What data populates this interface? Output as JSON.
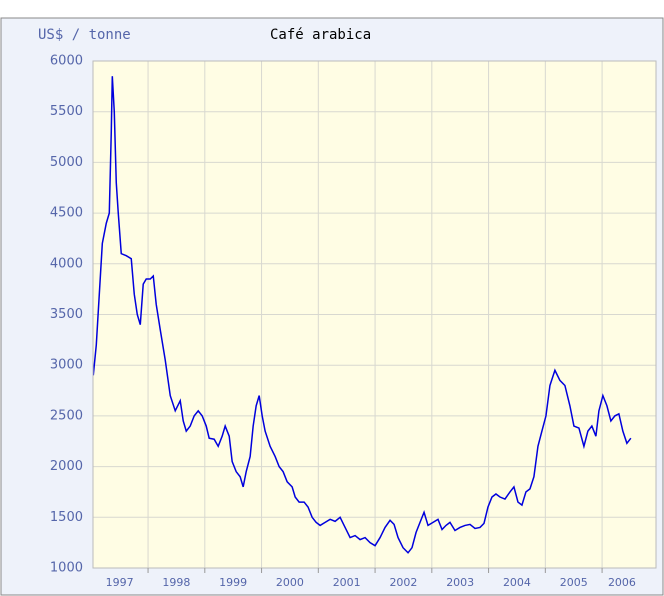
{
  "chart_data": {
    "type": "line",
    "title": "Café arabica",
    "y_label": "US$ / tonne",
    "xlim": [
      1997.03,
      2006.95
    ],
    "xticks": [
      {
        "value": 1997.5,
        "label": "1997"
      },
      {
        "value": 1998.5,
        "label": "1998"
      },
      {
        "value": 1999.5,
        "label": "1999"
      },
      {
        "value": 2000.5,
        "label": "2000"
      },
      {
        "value": 2001.5,
        "label": "2001"
      },
      {
        "value": 2002.5,
        "label": "2002"
      },
      {
        "value": 2003.5,
        "label": "2003"
      },
      {
        "value": 2004.5,
        "label": "2004"
      },
      {
        "value": 2005.5,
        "label": "2005"
      },
      {
        "value": 2006.35,
        "label": "2006"
      }
    ],
    "xgrid": [
      1998,
      1999,
      2000,
      2001,
      2002,
      2003,
      2004,
      2005,
      2006
    ],
    "ylim": [
      1000,
      6000
    ],
    "yticks": [
      1000,
      1500,
      2000,
      2500,
      3000,
      3500,
      4000,
      4500,
      5000,
      5500,
      6000
    ],
    "grid": true,
    "series": [
      {
        "name": "Café arabica",
        "color": "#0000dd",
        "x": [
          1997.035,
          1997.088,
          1997.141,
          1997.194,
          1997.264,
          1997.317,
          1997.352,
          1997.37,
          1997.405,
          1997.44,
          1997.475,
          1997.528,
          1997.616,
          1997.704,
          1997.757,
          1997.81,
          1997.863,
          1997.915,
          1997.968,
          1998.039,
          1998.092,
          1998.144,
          1998.215,
          1998.303,
          1998.391,
          1998.479,
          1998.567,
          1998.62,
          1998.673,
          1998.743,
          1998.813,
          1998.884,
          1998.954,
          1999.025,
          1999.077,
          1999.165,
          1999.236,
          1999.306,
          1999.359,
          1999.43,
          1999.482,
          1999.553,
          1999.623,
          1999.676,
          1999.729,
          1999.799,
          1999.852,
          1999.905,
          1999.958,
          2000.011,
          2000.063,
          2000.151,
          2000.239,
          2000.31,
          2000.38,
          2000.451,
          2000.539,
          2000.592,
          2000.662,
          2000.75,
          2000.82,
          2000.891,
          2000.961,
          2001.032,
          2001.12,
          2001.208,
          2001.296,
          2001.384,
          2001.472,
          2001.56,
          2001.648,
          2001.736,
          2001.824,
          2001.912,
          2002.0,
          2002.088,
          2002.176,
          2002.264,
          2002.335,
          2002.405,
          2002.493,
          2002.581,
          2002.651,
          2002.722,
          2002.792,
          2002.863,
          2002.933,
          2003.021,
          2003.109,
          2003.18,
          2003.25,
          2003.32,
          2003.408,
          2003.496,
          2003.585,
          2003.673,
          2003.761,
          2003.849,
          2003.919,
          2003.989,
          2004.06,
          2004.13,
          2004.201,
          2004.289,
          2004.377,
          2004.447,
          2004.518,
          2004.588,
          2004.658,
          2004.729,
          2004.799,
          2004.87,
          2004.94,
          2005.011,
          2005.081,
          2005.169,
          2005.257,
          2005.345,
          2005.433,
          2005.504,
          2005.592,
          2005.68,
          2005.75,
          2005.82,
          2005.891,
          2005.944,
          2006.014,
          2006.085,
          2006.155,
          2006.225,
          2006.296,
          2006.366,
          2006.437,
          2006.507
        ],
        "values": [
          2900,
          3200,
          3700,
          4200,
          4400,
          4500,
          5300,
          5850,
          5500,
          4800,
          4500,
          4100,
          4080,
          4050,
          3700,
          3500,
          3400,
          3800,
          3850,
          3850,
          3880,
          3600,
          3350,
          3050,
          2700,
          2550,
          2650,
          2450,
          2350,
          2400,
          2500,
          2550,
          2500,
          2400,
          2280,
          2270,
          2200,
          2300,
          2400,
          2300,
          2050,
          1950,
          1900,
          1800,
          1950,
          2100,
          2400,
          2600,
          2700,
          2500,
          2350,
          2200,
          2100,
          2000,
          1950,
          1850,
          1800,
          1700,
          1650,
          1650,
          1600,
          1500,
          1450,
          1420,
          1450,
          1480,
          1460,
          1500,
          1400,
          1300,
          1320,
          1280,
          1300,
          1250,
          1220,
          1300,
          1400,
          1470,
          1430,
          1300,
          1200,
          1150,
          1200,
          1350,
          1450,
          1550,
          1420,
          1450,
          1480,
          1380,
          1420,
          1450,
          1370,
          1400,
          1420,
          1430,
          1390,
          1400,
          1440,
          1600,
          1700,
          1730,
          1700,
          1680,
          1750,
          1800,
          1650,
          1620,
          1750,
          1780,
          1900,
          2200,
          2350,
          2500,
          2800,
          2950,
          2850,
          2800,
          2600,
          2400,
          2380,
          2200,
          2350,
          2400,
          2300,
          2550,
          2700,
          2600,
          2450,
          2500,
          2520,
          2350,
          2230,
          2280
        ]
      }
    ]
  }
}
